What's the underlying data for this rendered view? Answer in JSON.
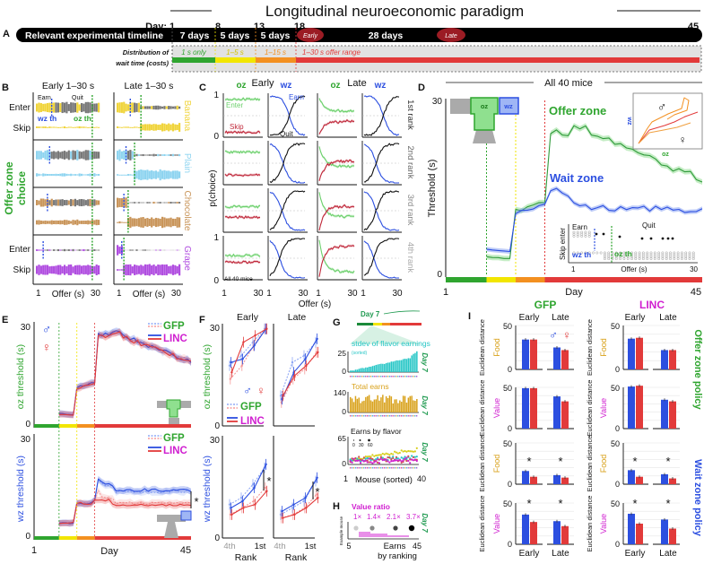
{
  "title": "Longitudinal neuroeconomic paradigm",
  "panel_labels": {
    "A": "A",
    "B": "B",
    "C": "C",
    "D": "D",
    "E": "E",
    "F": "F",
    "G": "G",
    "H": "H",
    "I": "I"
  },
  "timeline": {
    "day_label": "Day:",
    "days": [
      "1",
      "8",
      "13",
      "18",
      "45"
    ],
    "bar_label": "Relevant experimental timeline",
    "segments": [
      "7 days",
      "5 days",
      "5 days",
      "28 days"
    ],
    "early": "Early",
    "late": "Late",
    "dist_label_1": "Distribution of",
    "dist_label_2": "wait time (costs)",
    "ranges": [
      "1 s only",
      "1–5 s",
      "1–15 s",
      "1–30 s offer range"
    ]
  },
  "colors": {
    "green": "#2fa52f",
    "yellow": "#f2e600",
    "orange": "#f39020",
    "red": "#e23a3a",
    "blue": "#2c4fe0",
    "magenta": "#d01fd0",
    "gold": "#d9a21c",
    "cyan": "#26c6c6",
    "banana": "#f0d43a",
    "plain": "#8ed4f0",
    "chocolate": "#c9955a",
    "grape": "#b04de0"
  },
  "B": {
    "col_titles": [
      "Early 1–30 s",
      "Late 1–30 s"
    ],
    "earn": "Earn",
    "quit": "Quit",
    "wz_th": "wz th",
    "oz_th": "oz th",
    "enter": "Enter",
    "skip": "Skip",
    "ylabel_1": "Offer zone",
    "ylabel_2": "choice",
    "flavors": [
      "Banana",
      "Plain",
      "Chocolate",
      "Grape"
    ],
    "x_ticks": [
      "1",
      "30"
    ],
    "xlabel": "Offer (s)"
  },
  "C": {
    "oz": "oz",
    "wz": "wz",
    "early": "Early",
    "late": "Late",
    "earn": "Earn",
    "quit": "Quit",
    "enter": "Enter",
    "skip": "Skip",
    "ylabel": "p(choice)",
    "yticks": [
      "0",
      "1"
    ],
    "ranks": [
      "1st rank",
      "2nd rank",
      "3rd rank",
      "4th rank"
    ],
    "all_mice": "All 40 mice",
    "xticks": [
      "1",
      "30"
    ],
    "xlabel": "Offer (s)"
  },
  "D": {
    "title": "All 40 mice",
    "ylabel": "Threshold (s)",
    "yticks": [
      "0",
      "30"
    ],
    "xticks": [
      "1",
      "45"
    ],
    "xlabel": "Day",
    "oz_label": "Offer zone",
    "wz_label": "Wait zone",
    "maze_oz": "oz",
    "maze_wz": "wz",
    "inset_sex": [
      "♂",
      "♀"
    ],
    "inset_x": "oz",
    "inset_y": "wz",
    "inset2": {
      "earn": "Earn",
      "quit": "Quit",
      "wz_th": "wz th",
      "oz_th": "oz th",
      "ylabel": "Skip enter",
      "xlabel": "Offer (s)",
      "xticks": [
        "1",
        "30"
      ]
    }
  },
  "E": {
    "ylabel_top": "oz threshold (s)",
    "ylabel_bottom": "wz threshold (s)",
    "yticks": [
      "0",
      "30"
    ],
    "xticks": [
      "1",
      "45"
    ],
    "xlabel": "Day",
    "legend": [
      "GFP",
      "LINC"
    ],
    "sex": [
      "♂",
      "♀"
    ],
    "sig": "*"
  },
  "F": {
    "col_titles": [
      "Early",
      "Late"
    ],
    "ylabel_top": "oz threshold (s)",
    "ylabel_bottom": "wz threshold (s)",
    "yticks": [
      "0",
      "30"
    ],
    "xticks": [
      "4th",
      "1st"
    ],
    "xlabel": "Rank",
    "legend": [
      "GFP",
      "LINC"
    ],
    "sex": [
      "♂",
      "♀"
    ],
    "sig": "*"
  },
  "G": {
    "day7": "Day 7",
    "sub1": "stdev of flavor earnings",
    "sorted": "(sorted)",
    "sub1_yticks": [
      "0",
      "25"
    ],
    "sub2": "Total earns",
    "sub2_yticks": [
      "0",
      "140"
    ],
    "sub3": "Earns by flavor",
    "sub3_yticks": [
      "0",
      "65"
    ],
    "sizes": [
      "0",
      "30",
      "60"
    ],
    "xticks": [
      "1",
      "40"
    ],
    "xlabel": "Mouse (sorted)"
  },
  "H": {
    "title": "Value ratio",
    "ratios": [
      "1×",
      "1.4×",
      "2.1×",
      "3.7×"
    ],
    "ylabel": "Example mouse",
    "xticks": [
      "5",
      "45"
    ],
    "xlabel_1": "Earns",
    "xlabel_2": "by ranking",
    "day7": "Day 7"
  },
  "I": {
    "groups": [
      "GFP",
      "LINC"
    ],
    "cols": [
      "Early",
      "Late"
    ],
    "ylabel": "Euclidean distance",
    "rows": [
      "Food",
      "Value",
      "Food",
      "Value"
    ],
    "yticks": [
      "0",
      "50"
    ],
    "policies": [
      "Offer zone policy",
      "Wait zone policy"
    ],
    "sex": [
      "♂",
      "♀"
    ],
    "sig": "*",
    "values": {
      "GFP": [
        {
          "early": [
            34,
            34
          ],
          "late": [
            25,
            22
          ],
          "sig": false
        },
        {
          "early": [
            49,
            49
          ],
          "late": [
            39,
            33
          ],
          "sig": false
        },
        {
          "early": [
            16,
            9
          ],
          "late": [
            11,
            8
          ],
          "sig": true
        },
        {
          "early": [
            36,
            27
          ],
          "late": [
            28,
            22
          ],
          "sig": true
        }
      ],
      "LINC": [
        {
          "early": [
            35,
            36
          ],
          "late": [
            22,
            22
          ],
          "sig": false
        },
        {
          "early": [
            51,
            52
          ],
          "late": [
            35,
            33
          ],
          "sig": false
        },
        {
          "early": [
            17,
            9
          ],
          "late": [
            12,
            7
          ],
          "sig": true
        },
        {
          "early": [
            37,
            25
          ],
          "late": [
            30,
            19
          ],
          "sig": true
        }
      ]
    }
  }
}
